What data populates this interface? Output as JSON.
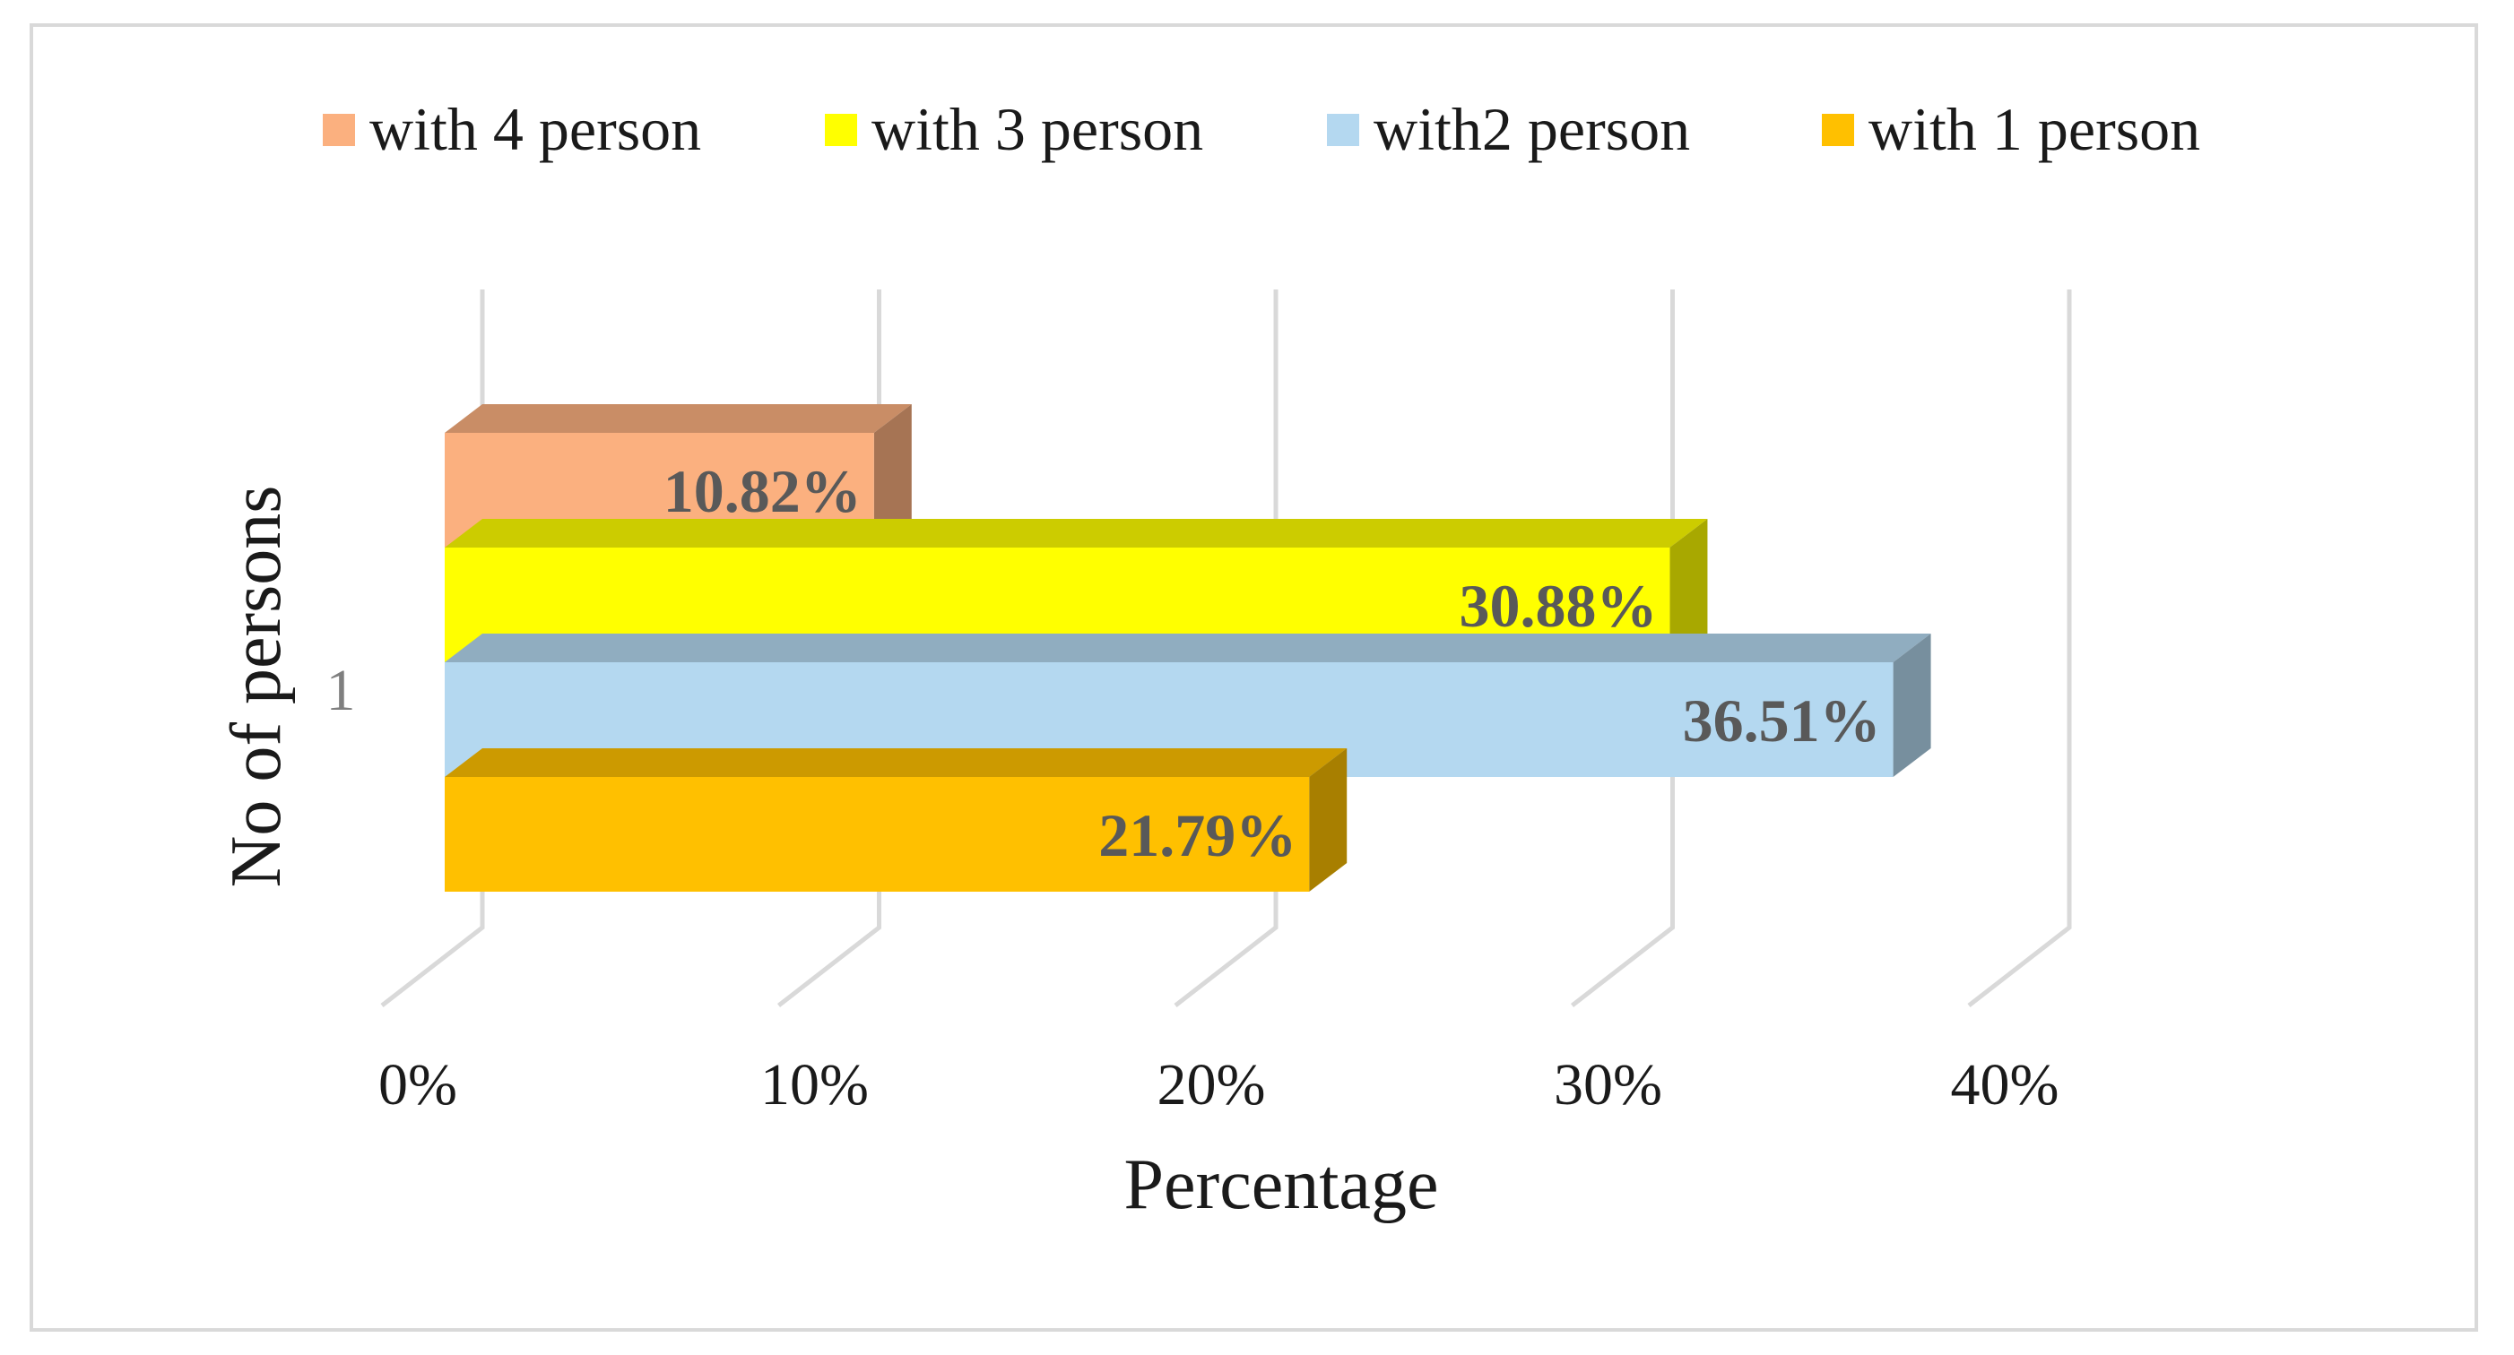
{
  "chart_data": {
    "type": "bar",
    "orientation": "horizontal",
    "style": "3d-clustered-bar",
    "categories": [
      "1"
    ],
    "series": [
      {
        "name": "with 4 person",
        "values": [
          10.82
        ],
        "label": "10.82%",
        "color": "#fbb07f"
      },
      {
        "name": "with 3 person",
        "values": [
          30.88
        ],
        "label": "30.88%",
        "color": "#ffff00"
      },
      {
        "name": "with2 person",
        "values": [
          36.51
        ],
        "label": "36.51%",
        "color": "#b4d8f0"
      },
      {
        "name": "with 1 person",
        "values": [
          21.79
        ],
        "label": "21.79%",
        "color": "#ffc000"
      }
    ],
    "xlabel": "Percentage",
    "ylabel": "No of persons",
    "xlim": [
      0,
      40
    ],
    "x_ticks": [
      "0%",
      "10%",
      "20%",
      "30%",
      "40%"
    ],
    "grid": true,
    "legend_position": "top"
  },
  "colors": {
    "frame_border": "#d9d9d9",
    "gridline": "#d9d9d9",
    "data_label": "#595959",
    "category_label": "#7f7f7f"
  }
}
